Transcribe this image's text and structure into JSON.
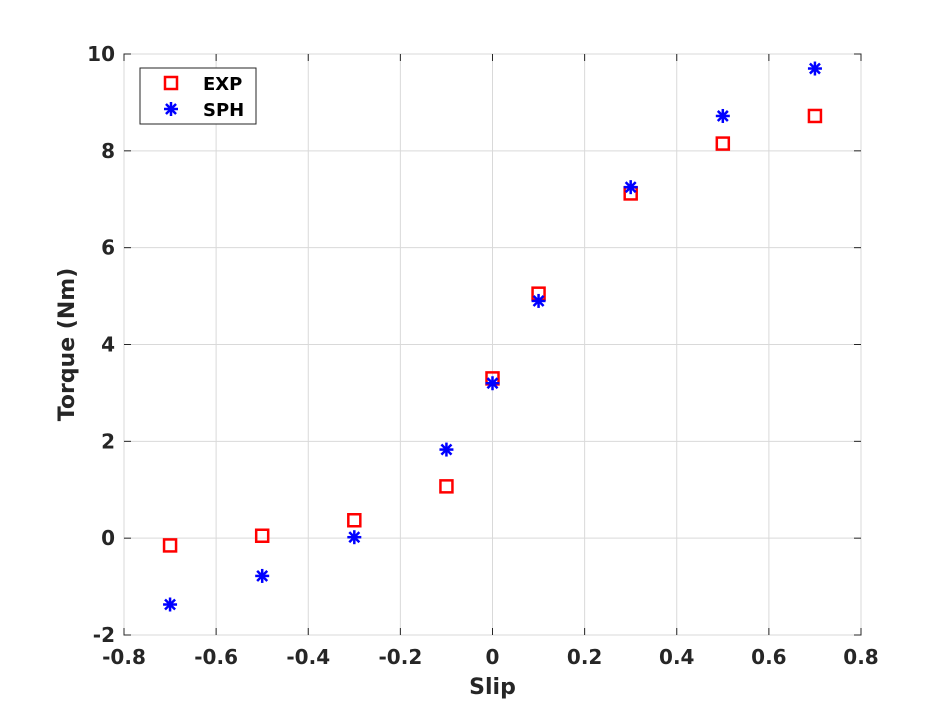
{
  "chart_data": {
    "type": "scatter",
    "xlabel": "Slip",
    "ylabel": "Torque (Nm)",
    "xlim": [
      -0.8,
      0.8
    ],
    "ylim": [
      -2,
      10
    ],
    "xticks": [
      -0.8,
      -0.6,
      -0.4,
      -0.2,
      0,
      0.2,
      0.4,
      0.6,
      0.8
    ],
    "yticks": [
      -2,
      0,
      2,
      4,
      6,
      8,
      10
    ],
    "xtick_labels": [
      "-0.8",
      "-0.6",
      "-0.4",
      "-0.2",
      "0",
      "0.2",
      "0.4",
      "0.6",
      "0.8"
    ],
    "ytick_labels": [
      "-2",
      "0",
      "2",
      "4",
      "6",
      "8",
      "10"
    ],
    "grid": true,
    "legend_position": "top-left",
    "series": [
      {
        "name": "EXP",
        "marker": "square",
        "color": "#ff0000",
        "x": [
          -0.7,
          -0.5,
          -0.3,
          -0.1,
          0,
          0.1,
          0.3,
          0.5,
          0.7
        ],
        "y": [
          -0.15,
          0.05,
          0.37,
          1.07,
          3.3,
          5.05,
          7.12,
          8.15,
          8.72
        ]
      },
      {
        "name": "SPH",
        "marker": "asterisk",
        "color": "#0000ff",
        "x": [
          -0.7,
          -0.5,
          -0.3,
          -0.1,
          0,
          0.1,
          0.3,
          0.5,
          0.7
        ],
        "y": [
          -1.37,
          -0.78,
          0.02,
          1.83,
          3.2,
          4.9,
          7.25,
          8.72,
          9.7
        ]
      }
    ]
  }
}
